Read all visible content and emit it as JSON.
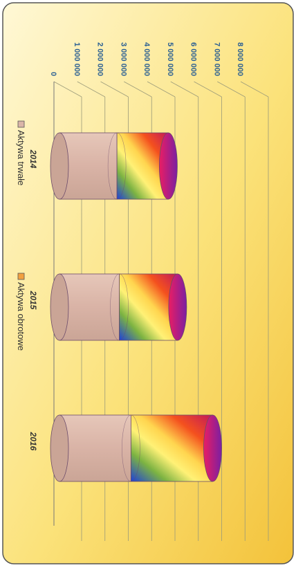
{
  "chart_data": {
    "type": "bar",
    "style": "3d-cylinder",
    "orientation": "rotated-90-clockwise",
    "stacked": true,
    "categories": [
      "2014",
      "2015",
      "2016"
    ],
    "series": [
      {
        "name": "Aktywa trwałe",
        "values": [
          2700000,
          2800000,
          3300000
        ]
      },
      {
        "name": "Aktywa obrotowe",
        "values": [
          2200000,
          2500000,
          3500000
        ]
      }
    ],
    "ylim": [
      0,
      8000000
    ],
    "yticks": [
      "0",
      "1 000 000",
      "2 000 000",
      "3 000 000",
      "4 000 000",
      "5 000 000",
      "6 000 000",
      "7 000 000",
      "8 000 000"
    ],
    "grid": true,
    "legend_position": "bottom",
    "colors": {
      "aktywa_trwale": "#d9b5a8",
      "aktywa_obrotowe": "#f2a040",
      "tick_labels": "#2a5f93",
      "background_top": "#fff6c8",
      "background_bottom": "#f5c83a"
    }
  }
}
